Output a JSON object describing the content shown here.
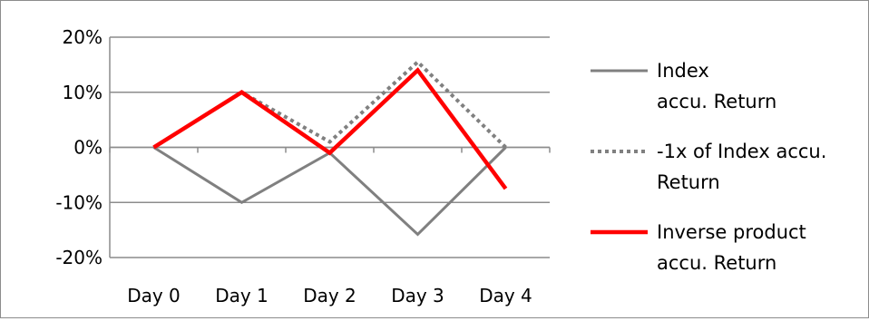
{
  "chart_data": {
    "type": "line",
    "title": "",
    "xlabel": "",
    "ylabel": "",
    "categories": [
      "Day 0",
      "Day 1",
      "Day 2",
      "Day 3",
      "Day 4"
    ],
    "yticks": [
      "20%",
      "10%",
      "0%",
      "-10%",
      "-20%"
    ],
    "ylim": [
      -0.2,
      0.2
    ],
    "grid": true,
    "legend_position": "right",
    "series": [
      {
        "name": "Index accu. Return",
        "legend_lines": [
          "Index",
          "accu. Return"
        ],
        "color": "#808080",
        "style": "solid",
        "values": [
          0,
          -0.1,
          -0.01,
          -0.158,
          0
        ]
      },
      {
        "name": "-1x of Index accu. Return",
        "legend_lines": [
          "-1x of Index accu.",
          "Return"
        ],
        "color": "#808080",
        "style": "dotted",
        "values": [
          0,
          0.1,
          0.01,
          0.155,
          0
        ]
      },
      {
        "name": "Inverse product accu. Return",
        "legend_lines": [
          "Inverse product",
          "accu. Return"
        ],
        "color": "#ff0000",
        "style": "solid",
        "values": [
          0,
          0.1,
          -0.01,
          0.14,
          -0.075
        ]
      }
    ]
  }
}
